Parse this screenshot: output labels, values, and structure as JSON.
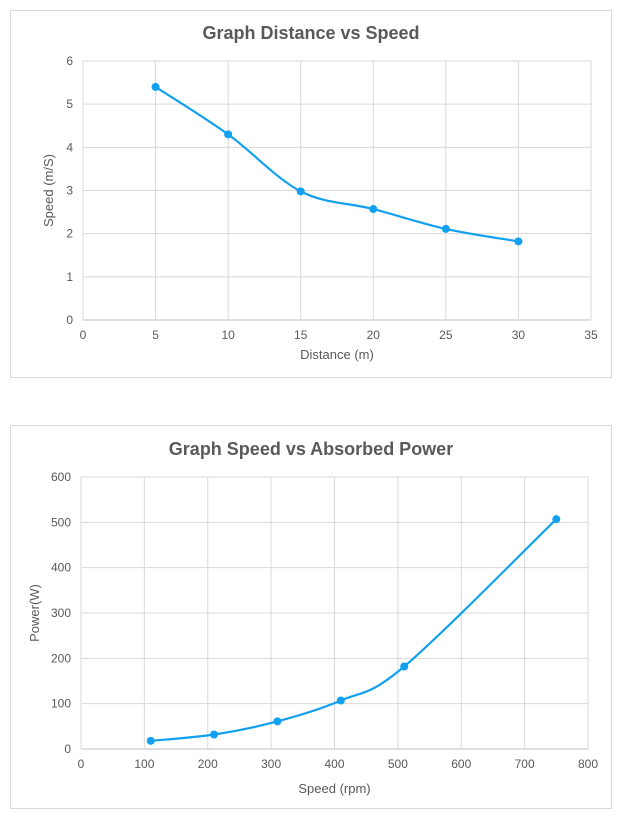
{
  "chart_data": [
    {
      "type": "line",
      "title": "Graph Distance vs Speed",
      "xlabel": "Distance (m)",
      "ylabel": "Speed (m/S)",
      "xlim": [
        0,
        35
      ],
      "ylim": [
        0,
        6
      ],
      "xticks": [
        "0",
        "5",
        "10",
        "15",
        "20",
        "25",
        "30",
        "35"
      ],
      "yticks": [
        "0",
        "1",
        "2",
        "3",
        "4",
        "5",
        "6"
      ],
      "grid": true,
      "smooth": true,
      "color": "#12a0f0",
      "series": [
        {
          "name": "Speed",
          "x": [
            5,
            10,
            15,
            20,
            25,
            30
          ],
          "y": [
            5.4,
            4.3,
            2.98,
            2.57,
            2.11,
            1.82
          ]
        }
      ]
    },
    {
      "type": "line",
      "title": "Graph Speed  vs Absorbed Power",
      "xlabel": "Speed (rpm)",
      "ylabel": "Power(W)",
      "xlim": [
        0,
        800
      ],
      "ylim": [
        0,
        600
      ],
      "xticks": [
        "0",
        "100",
        "200",
        "300",
        "400",
        "500",
        "600",
        "700",
        "800"
      ],
      "yticks": [
        "0",
        "100",
        "200",
        "300",
        "400",
        "500",
        "600"
      ],
      "grid": true,
      "smooth": true,
      "color": "#12a0f0",
      "series": [
        {
          "name": "Power",
          "x": [
            110,
            210,
            310,
            410,
            510,
            750
          ],
          "y": [
            18,
            32,
            61,
            107,
            182,
            507
          ]
        }
      ]
    }
  ]
}
